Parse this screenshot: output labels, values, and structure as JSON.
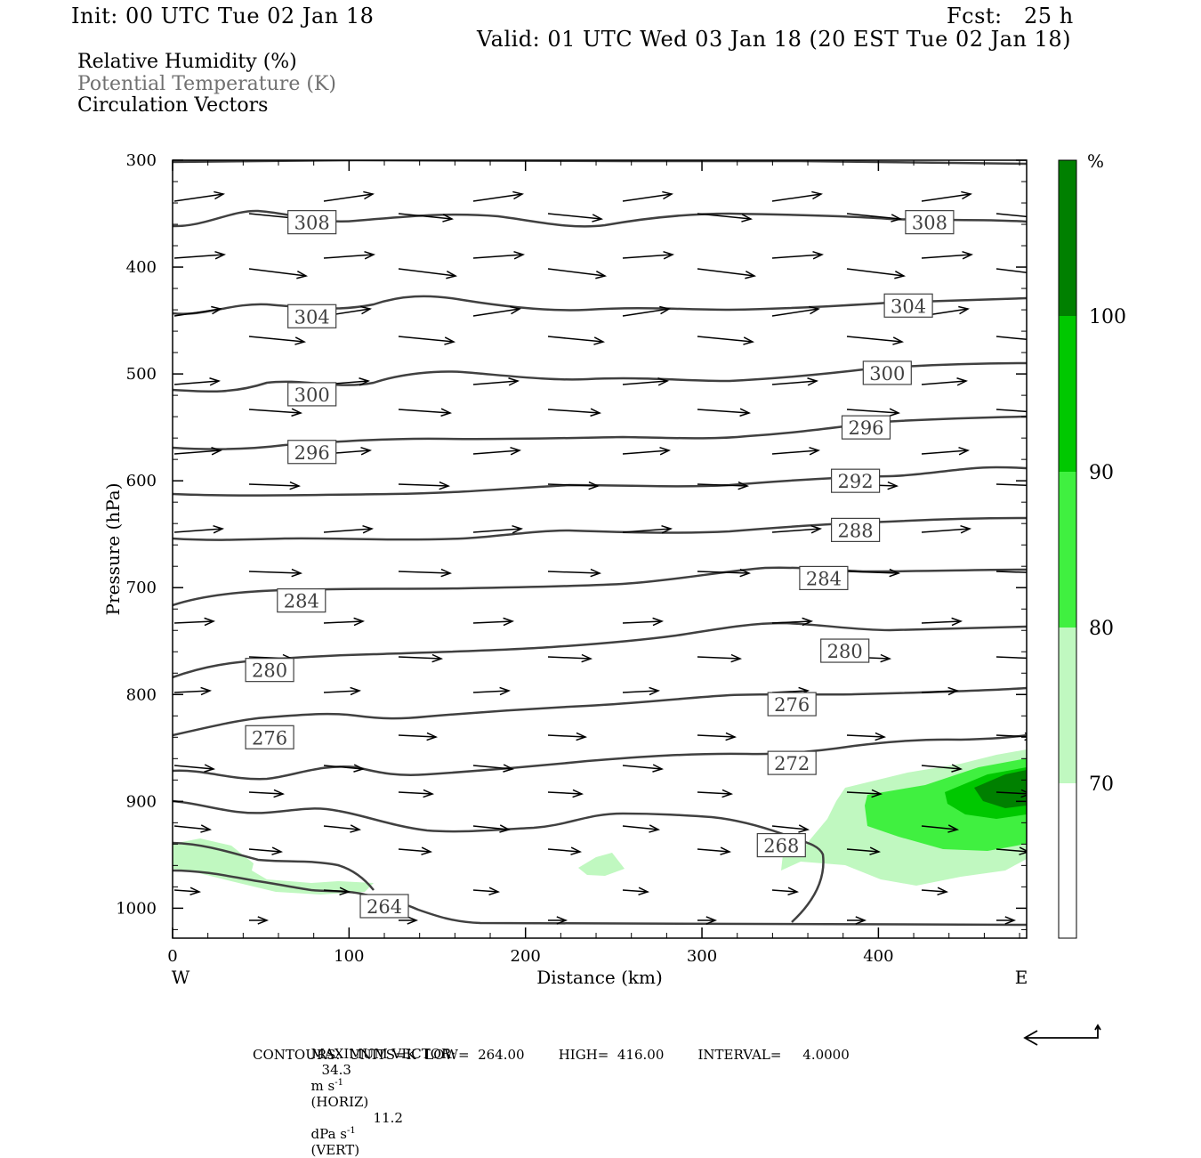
{
  "header": {
    "init": "Init: 00 UTC Tue 02 Jan 18",
    "fcst": "Fcst:   25 h",
    "valid": "Valid: 01 UTC Wed 03 Jan 18 (20 EST Tue 02 Jan 18)"
  },
  "legend": {
    "line1": "Relative Humidity (%)",
    "line2": "Potential Temperature (K)",
    "line3": "Circulation Vectors"
  },
  "footer": {
    "max_vector_label": "MAXIMUM VECTOR:",
    "horiz_value": "34.3",
    "horiz_unit_pre": "m s",
    "horiz_unit_exp": "-1",
    "horiz_tag": "(HORIZ)",
    "vert_value": "11.2",
    "vert_unit_pre": "dPa s",
    "vert_unit_exp": "-1",
    "vert_tag": "(VERT)",
    "contours": "CONTOURS:  UNITS=K  LOW=  264.00        HIGH=  416.00        INTERVAL=     4.0000"
  },
  "colors": {
    "rh_70_80": "#c0f8c0",
    "rh_80_90": "#40f040",
    "rh_90_100": "#00c800",
    "rh_100": "#008000",
    "contour": "#404040",
    "vector": "#000000"
  },
  "chart_data": {
    "type": "contour",
    "xlabel": "Distance (km)",
    "ylabel": "Pressure (hPa)",
    "x_range": [
      0,
      484
    ],
    "y_range": [
      300,
      1028
    ],
    "y_reversed": true,
    "x_ticks": [
      "0",
      "100",
      "200",
      "300",
      "400"
    ],
    "y_ticks": [
      "300",
      "400",
      "500",
      "600",
      "700",
      "800",
      "900",
      "1000"
    ],
    "x_end_labels": {
      "left": "W",
      "right": "E"
    },
    "colorbar": {
      "unit": "%",
      "levels": [
        "70",
        "80",
        "90",
        "100"
      ]
    },
    "contour_labels": [
      {
        "label": "308",
        "x": 79,
        "p": 358
      },
      {
        "label": "308",
        "x": 429,
        "p": 358
      },
      {
        "label": "304",
        "x": 79,
        "p": 446
      },
      {
        "label": "304",
        "x": 417,
        "p": 436
      },
      {
        "label": "300",
        "x": 79,
        "p": 519
      },
      {
        "label": "300",
        "x": 405,
        "p": 499
      },
      {
        "label": "296",
        "x": 79,
        "p": 573
      },
      {
        "label": "296",
        "x": 393,
        "p": 550
      },
      {
        "label": "292",
        "x": 387,
        "p": 600
      },
      {
        "label": "288",
        "x": 387,
        "p": 646
      },
      {
        "label": "284",
        "x": 73,
        "p": 712
      },
      {
        "label": "284",
        "x": 369,
        "p": 691
      },
      {
        "label": "280",
        "x": 381,
        "p": 759
      },
      {
        "label": "280",
        "x": 55,
        "p": 777
      },
      {
        "label": "276",
        "x": 351,
        "p": 809
      },
      {
        "label": "276",
        "x": 55,
        "p": 840
      },
      {
        "label": "272",
        "x": 351,
        "p": 864
      },
      {
        "label": "268",
        "x": 345,
        "p": 941
      },
      {
        "label": "264",
        "x": 120,
        "p": 998
      }
    ]
  }
}
